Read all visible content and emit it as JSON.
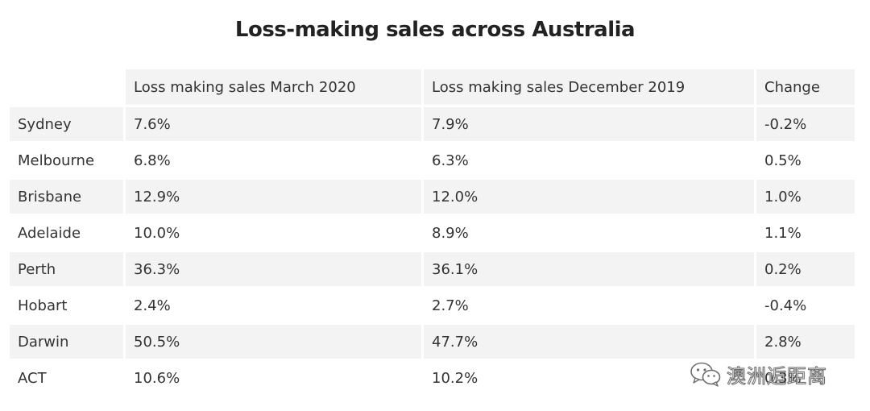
{
  "title": "Loss-making sales across Australia",
  "chart_data": {
    "type": "table",
    "title": "Loss-making sales across Australia",
    "columns": [
      "",
      "Loss making sales March 2020",
      "Loss making sales December 2019",
      "Change"
    ],
    "rows": [
      {
        "city": "Sydney",
        "march_2020": "7.6%",
        "december_2019": "7.9%",
        "change": "-0.2%"
      },
      {
        "city": "Melbourne",
        "march_2020": "6.8%",
        "december_2019": "6.3%",
        "change": "0.5%"
      },
      {
        "city": "Brisbane",
        "march_2020": "12.9%",
        "december_2019": "12.0%",
        "change": "1.0%"
      },
      {
        "city": "Adelaide",
        "march_2020": "10.0%",
        "december_2019": "8.9%",
        "change": "1.1%"
      },
      {
        "city": "Perth",
        "march_2020": "36.3%",
        "december_2019": "36.1%",
        "change": "0.2%"
      },
      {
        "city": "Hobart",
        "march_2020": "2.4%",
        "december_2019": "2.7%",
        "change": "-0.4%"
      },
      {
        "city": "Darwin",
        "march_2020": "50.5%",
        "december_2019": "47.7%",
        "change": "2.8%"
      },
      {
        "city": "ACT",
        "march_2020": "10.6%",
        "december_2019": "10.2%",
        "change": "0.3%"
      }
    ]
  },
  "watermark": {
    "icon": "wechat-icon",
    "text": "澳洲逅距离"
  },
  "colors": {
    "stripe": "#f3f3f3",
    "text": "#333333",
    "title": "#222222"
  }
}
